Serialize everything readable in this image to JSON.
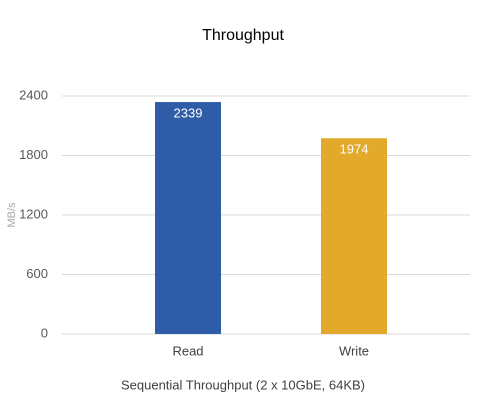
{
  "chart_data": {
    "type": "bar",
    "title": "Throughput",
    "y_label": "MB/s",
    "x_label": "Sequential Throughput (2 x 10GbE, 64KB)",
    "categories": [
      "Read",
      "Write"
    ],
    "values": [
      2339,
      1974
    ],
    "colors": [
      "#2e5ca6",
      "#e2a92b"
    ],
    "ylim": [
      0,
      2400
    ],
    "yticks": [
      0,
      600,
      1200,
      1800,
      2400
    ],
    "grid": true
  }
}
